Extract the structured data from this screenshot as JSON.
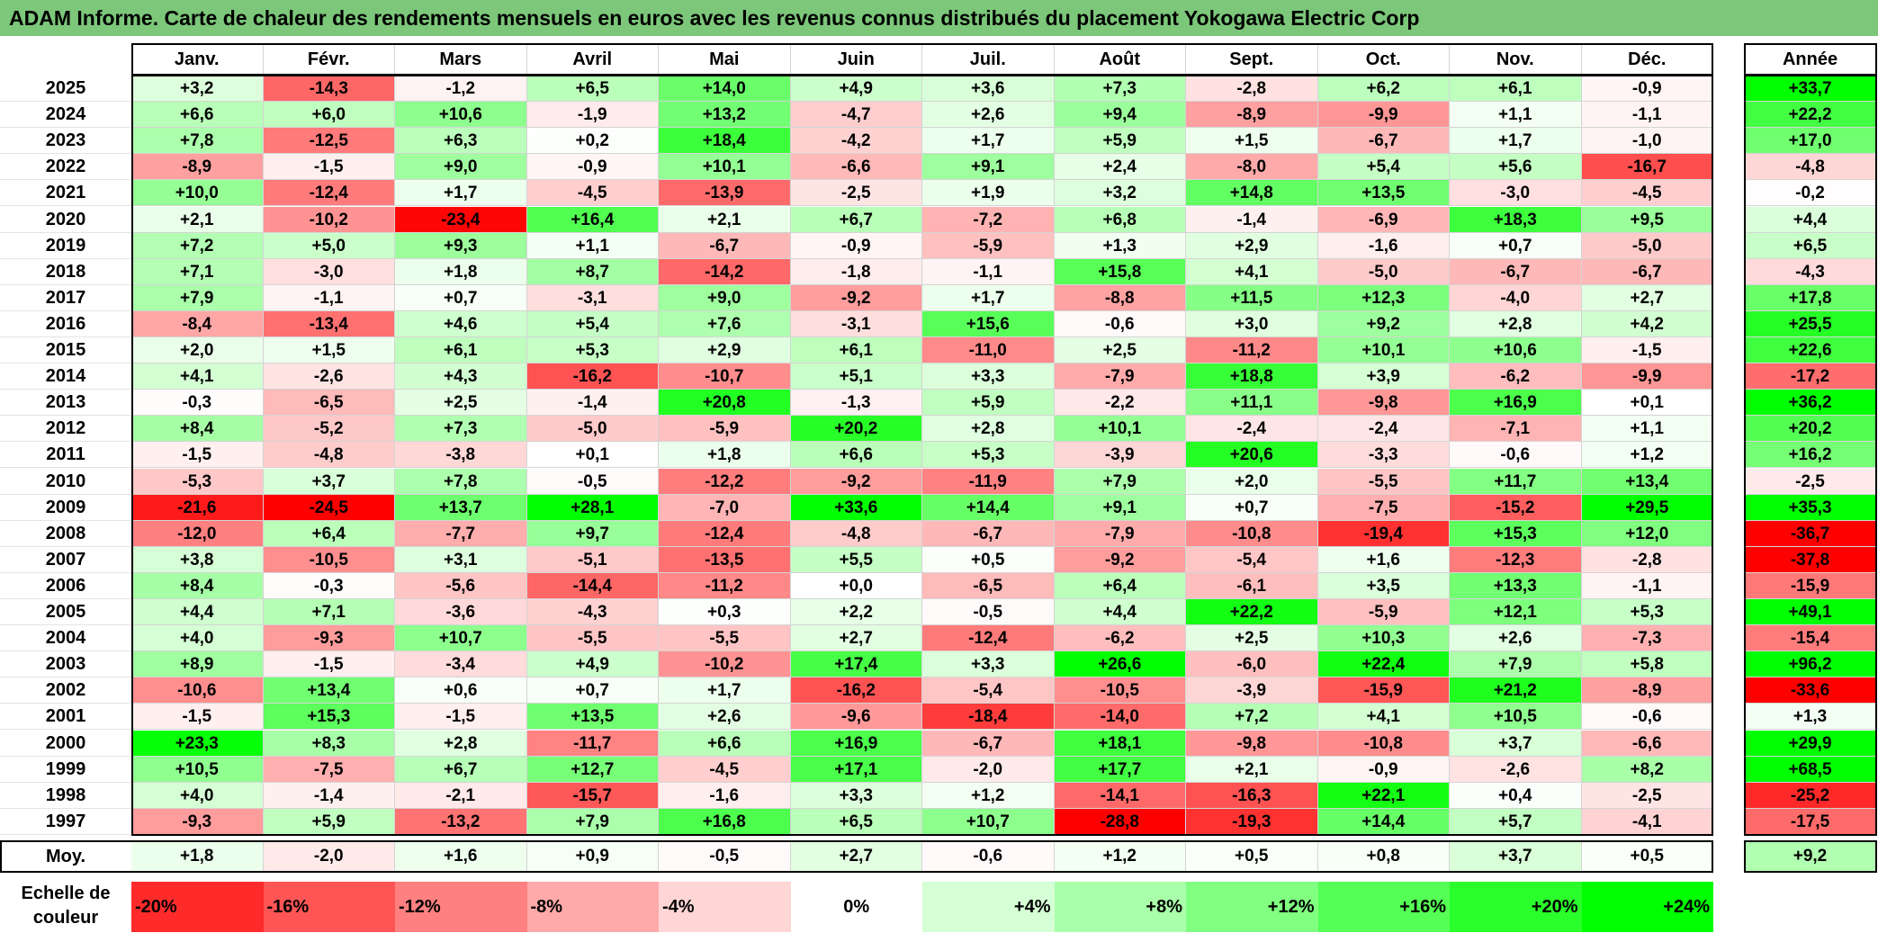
{
  "title": "ADAM Informe. Carte de chaleur des rendements mensuels en euros avec les revenus connus distribués du placement Yokogawa Electric Corp",
  "colors": {
    "title_bg": "#7cc77a",
    "neg_max": "#ff0000",
    "pos_max": "#00ff00",
    "zero": "#ffffff"
  },
  "chart_data": {
    "type": "heatmap",
    "columns": [
      "Janv.",
      "Févr.",
      "Mars",
      "Avril",
      "Mai",
      "Juin",
      "Juil.",
      "Août",
      "Sept.",
      "Oct.",
      "Nov.",
      "Déc."
    ],
    "year_column_label": "Année",
    "rows": [
      {
        "year": "2025",
        "values": [
          "+3,2",
          "-14,3",
          "-1,2",
          "+6,5",
          "+14,0",
          "+4,9",
          "+3,6",
          "+7,3",
          "-2,8",
          "+6,2",
          "+6,1",
          "-0,9"
        ],
        "annual": "+33,7"
      },
      {
        "year": "2024",
        "values": [
          "+6,6",
          "+6,0",
          "+10,6",
          "-1,9",
          "+13,2",
          "-4,7",
          "+2,6",
          "+9,4",
          "-8,9",
          "-9,9",
          "+1,1",
          "-1,1"
        ],
        "annual": "+22,2"
      },
      {
        "year": "2023",
        "values": [
          "+7,8",
          "-12,5",
          "+6,3",
          "+0,2",
          "+18,4",
          "-4,2",
          "+1,7",
          "+5,9",
          "+1,5",
          "-6,7",
          "+1,7",
          "-1,0"
        ],
        "annual": "+17,0"
      },
      {
        "year": "2022",
        "values": [
          "-8,9",
          "-1,5",
          "+9,0",
          "-0,9",
          "+10,1",
          "-6,6",
          "+9,1",
          "+2,4",
          "-8,0",
          "+5,4",
          "+5,6",
          "-16,7"
        ],
        "annual": "-4,8"
      },
      {
        "year": "2021",
        "values": [
          "+10,0",
          "-12,4",
          "+1,7",
          "-4,5",
          "-13,9",
          "-2,5",
          "+1,9",
          "+3,2",
          "+14,8",
          "+13,5",
          "-3,0",
          "-4,5"
        ],
        "annual": "-0,2"
      },
      {
        "year": "2020",
        "values": [
          "+2,1",
          "-10,2",
          "-23,4",
          "+16,4",
          "+2,1",
          "+6,7",
          "-7,2",
          "+6,8",
          "-1,4",
          "-6,9",
          "+18,3",
          "+9,5"
        ],
        "annual": "+4,4"
      },
      {
        "year": "2019",
        "values": [
          "+7,2",
          "+5,0",
          "+9,3",
          "+1,1",
          "-6,7",
          "-0,9",
          "-5,9",
          "+1,3",
          "+2,9",
          "-1,6",
          "+0,7",
          "-5,0"
        ],
        "annual": "+6,5"
      },
      {
        "year": "2018",
        "values": [
          "+7,1",
          "-3,0",
          "+1,8",
          "+8,7",
          "-14,2",
          "-1,8",
          "-1,1",
          "+15,8",
          "+4,1",
          "-5,0",
          "-6,7",
          "-6,7"
        ],
        "annual": "-4,3"
      },
      {
        "year": "2017",
        "values": [
          "+7,9",
          "-1,1",
          "+0,7",
          "-3,1",
          "+9,0",
          "-9,2",
          "+1,7",
          "-8,8",
          "+11,5",
          "+12,3",
          "-4,0",
          "+2,7"
        ],
        "annual": "+17,8"
      },
      {
        "year": "2016",
        "values": [
          "-8,4",
          "-13,4",
          "+4,6",
          "+5,4",
          "+7,6",
          "-3,1",
          "+15,6",
          "-0,6",
          "+3,0",
          "+9,2",
          "+2,8",
          "+4,2"
        ],
        "annual": "+25,5"
      },
      {
        "year": "2015",
        "values": [
          "+2,0",
          "+1,5",
          "+6,1",
          "+5,3",
          "+2,9",
          "+6,1",
          "-11,0",
          "+2,5",
          "-11,2",
          "+10,1",
          "+10,6",
          "-1,5"
        ],
        "annual": "+22,6"
      },
      {
        "year": "2014",
        "values": [
          "+4,1",
          "-2,6",
          "+4,3",
          "-16,2",
          "-10,7",
          "+5,1",
          "+3,3",
          "-7,9",
          "+18,8",
          "+3,9",
          "-6,2",
          "-9,9"
        ],
        "annual": "-17,2"
      },
      {
        "year": "2013",
        "values": [
          "-0,3",
          "-6,5",
          "+2,5",
          "-1,4",
          "+20,8",
          "-1,3",
          "+5,9",
          "-2,2",
          "+11,1",
          "-9,8",
          "+16,9",
          "+0,1"
        ],
        "annual": "+36,2"
      },
      {
        "year": "2012",
        "values": [
          "+8,4",
          "-5,2",
          "+7,3",
          "-5,0",
          "-5,9",
          "+20,2",
          "+2,8",
          "+10,1",
          "-2,4",
          "-2,4",
          "-7,1",
          "+1,1"
        ],
        "annual": "+20,2"
      },
      {
        "year": "2011",
        "values": [
          "-1,5",
          "-4,8",
          "-3,8",
          "+0,1",
          "+1,8",
          "+6,6",
          "+5,3",
          "-3,9",
          "+20,6",
          "-3,3",
          "-0,6",
          "+1,2"
        ],
        "annual": "+16,2"
      },
      {
        "year": "2010",
        "values": [
          "-5,3",
          "+3,7",
          "+7,8",
          "-0,5",
          "-12,2",
          "-9,2",
          "-11,9",
          "+7,9",
          "+2,0",
          "-5,5",
          "+11,7",
          "+13,4"
        ],
        "annual": "-2,5"
      },
      {
        "year": "2009",
        "values": [
          "-21,6",
          "-24,5",
          "+13,7",
          "+28,1",
          "-7,0",
          "+33,6",
          "+14,4",
          "+9,1",
          "+0,7",
          "-7,5",
          "-15,2",
          "+29,5"
        ],
        "annual": "+35,3"
      },
      {
        "year": "2008",
        "values": [
          "-12,0",
          "+6,4",
          "-7,7",
          "+9,7",
          "-12,4",
          "-4,8",
          "-6,7",
          "-7,9",
          "-10,8",
          "-19,4",
          "+15,3",
          "+12,0"
        ],
        "annual": "-36,7"
      },
      {
        "year": "2007",
        "values": [
          "+3,8",
          "-10,5",
          "+3,1",
          "-5,1",
          "-13,5",
          "+5,5",
          "+0,5",
          "-9,2",
          "-5,4",
          "+1,6",
          "-12,3",
          "-2,8"
        ],
        "annual": "-37,8"
      },
      {
        "year": "2006",
        "values": [
          "+8,4",
          "-0,3",
          "-5,6",
          "-14,4",
          "-11,2",
          "+0,0",
          "-6,5",
          "+6,4",
          "-6,1",
          "+3,5",
          "+13,3",
          "-1,1"
        ],
        "annual": "-15,9"
      },
      {
        "year": "2005",
        "values": [
          "+4,4",
          "+7,1",
          "-3,6",
          "-4,3",
          "+0,3",
          "+2,2",
          "-0,5",
          "+4,4",
          "+22,2",
          "-5,9",
          "+12,1",
          "+5,3"
        ],
        "annual": "+49,1"
      },
      {
        "year": "2004",
        "values": [
          "+4,0",
          "-9,3",
          "+10,7",
          "-5,5",
          "-5,5",
          "+2,7",
          "-12,4",
          "-6,2",
          "+2,5",
          "+10,3",
          "+2,6",
          "-7,3"
        ],
        "annual": "-15,4"
      },
      {
        "year": "2003",
        "values": [
          "+8,9",
          "-1,5",
          "-3,4",
          "+4,9",
          "-10,2",
          "+17,4",
          "+3,3",
          "+26,6",
          "-6,0",
          "+22,4",
          "+7,9",
          "+5,8"
        ],
        "annual": "+96,2"
      },
      {
        "year": "2002",
        "values": [
          "-10,6",
          "+13,4",
          "+0,6",
          "+0,7",
          "+1,7",
          "-16,2",
          "-5,4",
          "-10,5",
          "-3,9",
          "-15,9",
          "+21,2",
          "-8,9"
        ],
        "annual": "-33,6"
      },
      {
        "year": "2001",
        "values": [
          "-1,5",
          "+15,3",
          "-1,5",
          "+13,5",
          "+2,6",
          "-9,6",
          "-18,4",
          "-14,0",
          "+7,2",
          "+4,1",
          "+10,5",
          "-0,6"
        ],
        "annual": "+1,3"
      },
      {
        "year": "2000",
        "values": [
          "+23,3",
          "+8,3",
          "+2,8",
          "-11,7",
          "+6,6",
          "+16,9",
          "-6,7",
          "+18,1",
          "-9,8",
          "-10,8",
          "+3,7",
          "-6,6"
        ],
        "annual": "+29,9"
      },
      {
        "year": "1999",
        "values": [
          "+10,5",
          "-7,5",
          "+6,7",
          "+12,7",
          "-4,5",
          "+17,1",
          "-2,0",
          "+17,7",
          "+2,1",
          "-0,9",
          "-2,6",
          "+8,2"
        ],
        "annual": "+68,5"
      },
      {
        "year": "1998",
        "values": [
          "+4,0",
          "-1,4",
          "-2,1",
          "-15,7",
          "-1,6",
          "+3,3",
          "+1,2",
          "-14,1",
          "-16,3",
          "+22,1",
          "+0,4",
          "-2,5"
        ],
        "annual": "-25,2"
      },
      {
        "year": "1997",
        "values": [
          "-9,3",
          "+5,9",
          "-13,2",
          "+7,9",
          "+16,8",
          "+6,5",
          "+10,7",
          "-28,8",
          "-19,3",
          "+14,4",
          "+5,7",
          "-4,1"
        ],
        "annual": "-17,5"
      }
    ],
    "average": {
      "label": "Moy.",
      "values": [
        "+1,8",
        "-2,0",
        "+1,6",
        "+0,9",
        "-0,5",
        "+2,7",
        "-0,6",
        "+1,2",
        "+0,5",
        "+0,8",
        "+3,7",
        "+0,5"
      ],
      "annual": "+9,2"
    },
    "color_scale": {
      "label_line1": "Echelle de",
      "label_line2": "couleur",
      "steps": [
        "-20%",
        "-16%",
        "-12%",
        "-8%",
        "-4%",
        "0%",
        "+4%",
        "+8%",
        "+12%",
        "+16%",
        "+20%",
        "+24%"
      ]
    }
  }
}
